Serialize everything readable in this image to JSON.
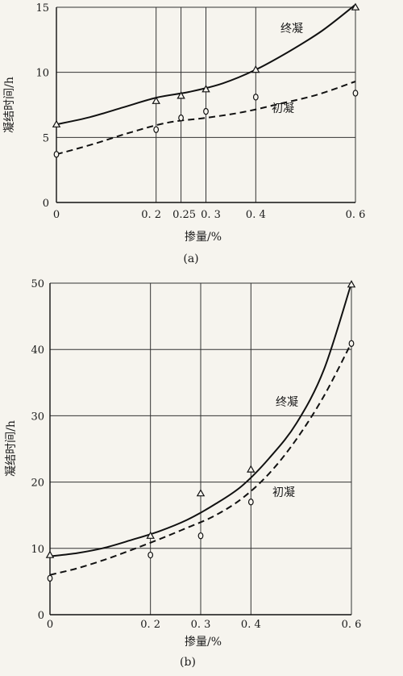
{
  "chart_data": [
    {
      "type": "line",
      "panel_label": "(a)",
      "xlabel": "掺量/%",
      "ylabel": "凝结时间/h",
      "xlim": [
        0,
        0.6
      ],
      "ylim": [
        0,
        15
      ],
      "x_ticks": [
        {
          "value": 0,
          "label": "0"
        },
        {
          "value": 0.2,
          "label": "0. 2"
        },
        {
          "value": 0.25,
          "label": "0.25"
        },
        {
          "value": 0.3,
          "label": "0. 3"
        },
        {
          "value": 0.4,
          "label": "0. 4"
        },
        {
          "value": 0.6,
          "label": "0. 6"
        }
      ],
      "y_ticks": [
        {
          "value": 0,
          "label": "0"
        },
        {
          "value": 5,
          "label": "5"
        },
        {
          "value": 10,
          "label": "10"
        },
        {
          "value": 15,
          "label": "15"
        }
      ],
      "x_grid": [
        0.2,
        0.25,
        0.3,
        0.4,
        0.6
      ],
      "y_grid": [
        5,
        10,
        15
      ],
      "series": [
        {
          "name": "终凝",
          "line_style": "solid",
          "marker": "triangle",
          "x": [
            0,
            0.2,
            0.25,
            0.3,
            0.4,
            0.6
          ],
          "y": [
            6.0,
            7.8,
            8.2,
            8.7,
            10.2,
            15.0
          ],
          "fit_y": [
            6.0,
            6.55,
            7.3,
            8.05,
            8.5,
            9.15,
            10.2,
            11.6,
            13.2,
            15.2
          ]
        },
        {
          "name": "初凝",
          "line_style": "dashed",
          "marker": "circle",
          "x": [
            0,
            0.2,
            0.25,
            0.3,
            0.4,
            0.6
          ],
          "y": [
            3.7,
            5.6,
            6.5,
            7.0,
            8.1,
            8.4
          ],
          "fit_y": [
            3.7,
            4.5,
            5.4,
            6.15,
            6.5,
            6.95,
            7.6,
            8.3,
            9.3
          ]
        }
      ]
    },
    {
      "type": "line",
      "panel_label": "(b)",
      "xlabel": "掺量/%",
      "ylabel": "凝结时间/h",
      "xlim": [
        0,
        0.6
      ],
      "ylim": [
        0,
        50
      ],
      "x_ticks": [
        {
          "value": 0,
          "label": "0"
        },
        {
          "value": 0.2,
          "label": "0. 2"
        },
        {
          "value": 0.3,
          "label": "0. 3"
        },
        {
          "value": 0.4,
          "label": "0. 4"
        },
        {
          "value": 0.6,
          "label": "0. 6"
        }
      ],
      "y_ticks": [
        {
          "value": 0,
          "label": "0"
        },
        {
          "value": 10,
          "label": "10"
        },
        {
          "value": 20,
          "label": "20"
        },
        {
          "value": 30,
          "label": "30"
        },
        {
          "value": 40,
          "label": "40"
        },
        {
          "value": 50,
          "label": "50"
        }
      ],
      "x_grid": [
        0.2,
        0.3,
        0.4,
        0.6
      ],
      "y_grid": [
        10,
        20,
        30,
        40,
        50
      ],
      "series": [
        {
          "name": "终凝",
          "line_style": "solid",
          "marker": "triangle",
          "x": [
            0,
            0.2,
            0.3,
            0.4,
            0.6
          ],
          "y": [
            9.0,
            11.9,
            18.3,
            21.9,
            49.8
          ],
          "fit_y": [
            8.8,
            9.3,
            10.1,
            11.3,
            12.6,
            14.3,
            16.6,
            19.4,
            23.6,
            28.9,
            37.0,
            50.0
          ]
        },
        {
          "name": "初凝",
          "line_style": "dashed",
          "marker": "circle",
          "x": [
            0,
            0.2,
            0.3,
            0.4,
            0.6
          ],
          "y": [
            5.5,
            9.0,
            11.9,
            17.0,
            40.9
          ],
          "fit_y": [
            6.0,
            7.0,
            8.3,
            9.8,
            11.4,
            13.1,
            14.9,
            17.5,
            21.3,
            26.5,
            33.0,
            41.0
          ]
        }
      ]
    }
  ]
}
